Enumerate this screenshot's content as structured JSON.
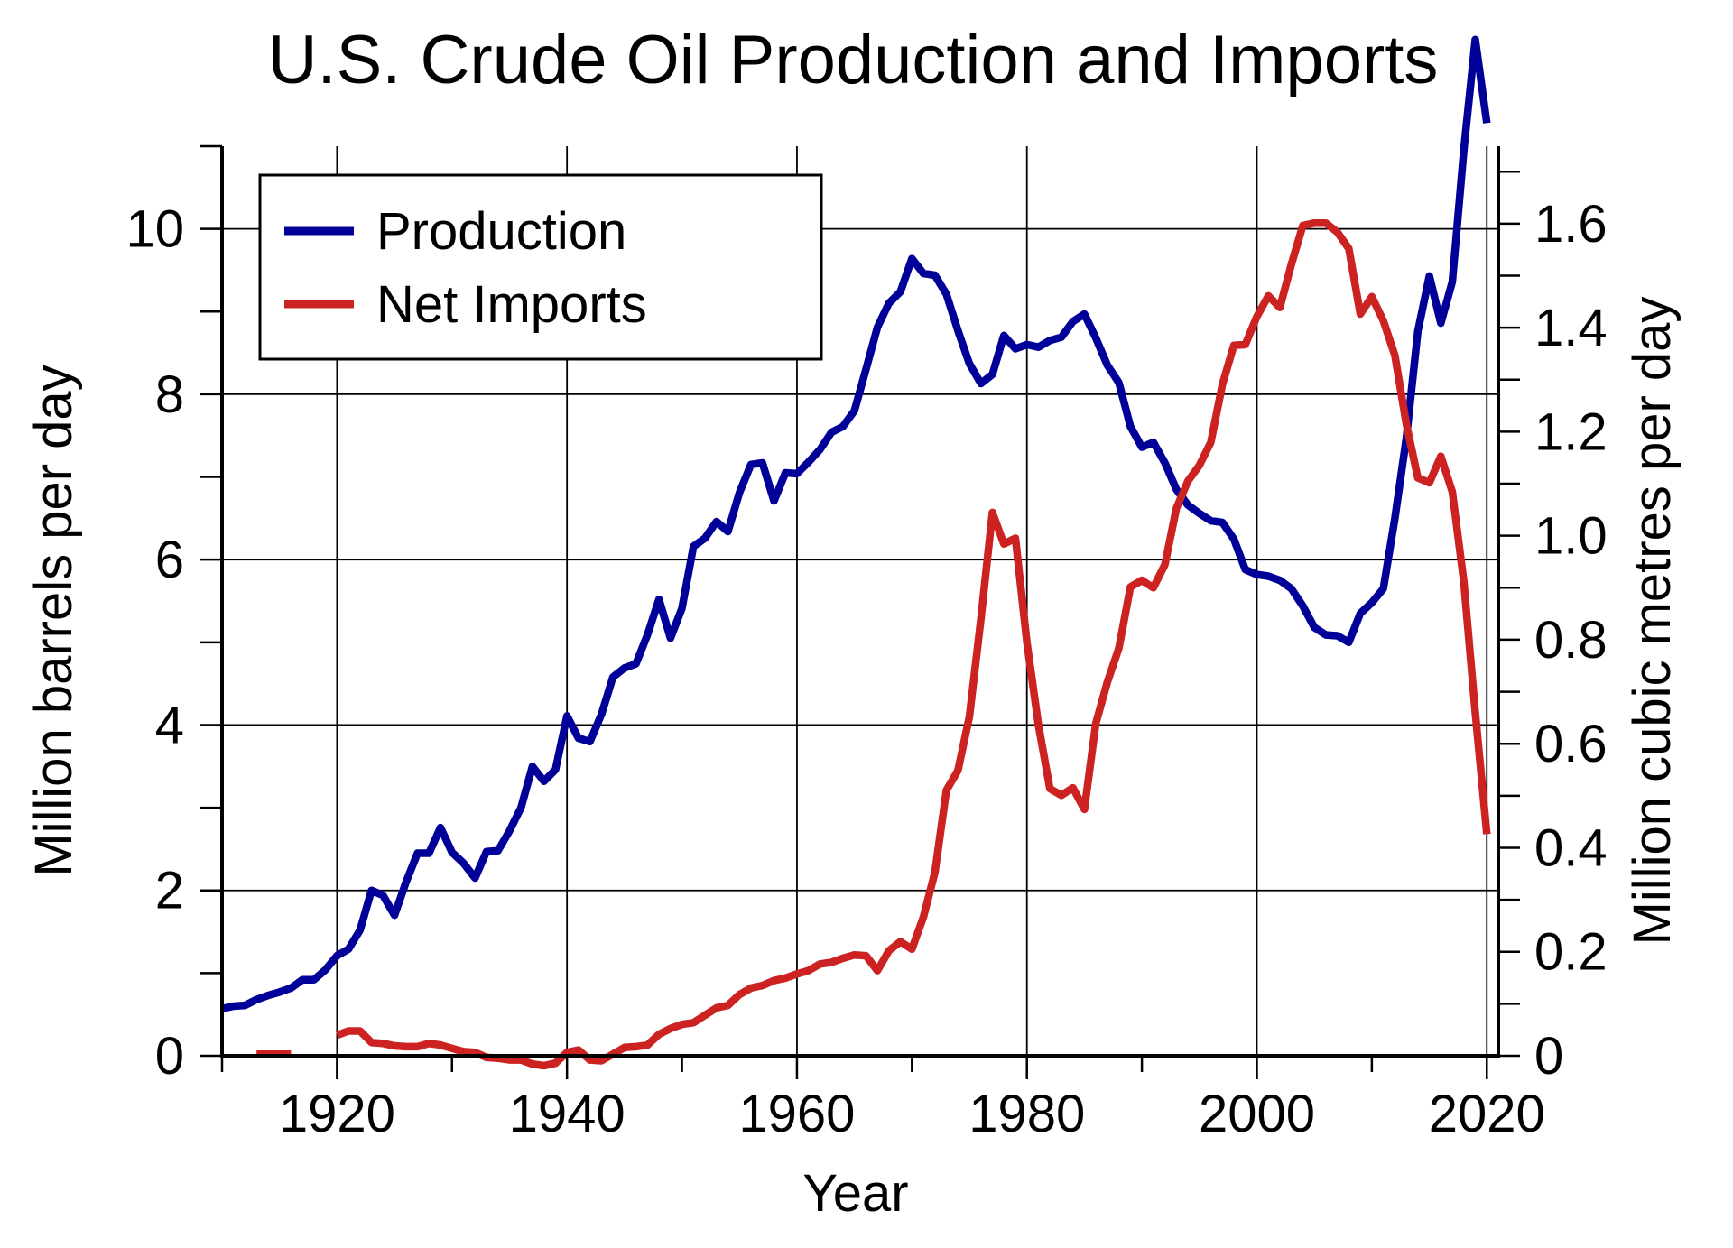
{
  "chart_data": {
    "type": "line",
    "title": "U.S. Crude Oil Production and Imports",
    "xlabel": "Year",
    "ylabel": "Million barrels per day",
    "ylabel_right": "Million cubic metres per day",
    "xlim": [
      1910,
      2021
    ],
    "ylim": [
      0,
      11
    ],
    "ylim_right": [
      0,
      1.749
    ],
    "x_ticks": [
      1920,
      1940,
      1960,
      1980,
      2000,
      2020
    ],
    "y_ticks": [
      0,
      2,
      4,
      6,
      8,
      10
    ],
    "y_ticks_right": [
      "0",
      "0.2",
      "0.4",
      "0.6",
      "0.8",
      "1.0",
      "1.2",
      "1.4",
      "1.6"
    ],
    "grid": true,
    "legend_position": "top-left",
    "series": [
      {
        "name": "Production",
        "color": "#000099",
        "x": [
          1910,
          1911,
          1912,
          1913,
          1914,
          1915,
          1916,
          1917,
          1918,
          1919,
          1920,
          1921,
          1922,
          1923,
          1924,
          1925,
          1926,
          1927,
          1928,
          1929,
          1930,
          1931,
          1932,
          1933,
          1934,
          1935,
          1936,
          1937,
          1938,
          1939,
          1940,
          1941,
          1942,
          1943,
          1944,
          1945,
          1946,
          1947,
          1948,
          1949,
          1950,
          1951,
          1952,
          1953,
          1954,
          1955,
          1956,
          1957,
          1958,
          1959,
          1960,
          1961,
          1962,
          1963,
          1964,
          1965,
          1966,
          1967,
          1968,
          1969,
          1970,
          1971,
          1972,
          1973,
          1974,
          1975,
          1976,
          1977,
          1978,
          1979,
          1980,
          1981,
          1982,
          1983,
          1984,
          1985,
          1986,
          1987,
          1988,
          1989,
          1990,
          1991,
          1992,
          1993,
          1994,
          1995,
          1996,
          1997,
          1998,
          1999,
          2000,
          2001,
          2002,
          2003,
          2004,
          2005,
          2006,
          2007,
          2008,
          2009,
          2010,
          2011,
          2012,
          2013,
          2014,
          2015,
          2016,
          2017,
          2018,
          2019,
          2020
        ],
        "values": [
          0.57,
          0.6,
          0.61,
          0.68,
          0.73,
          0.77,
          0.82,
          0.92,
          0.92,
          1.04,
          1.21,
          1.29,
          1.52,
          2.0,
          1.94,
          1.7,
          2.1,
          2.45,
          2.45,
          2.76,
          2.46,
          2.33,
          2.15,
          2.47,
          2.48,
          2.72,
          3.0,
          3.5,
          3.32,
          3.46,
          4.11,
          3.84,
          3.8,
          4.13,
          4.58,
          4.69,
          4.74,
          5.09,
          5.52,
          5.05,
          5.41,
          6.16,
          6.26,
          6.46,
          6.34,
          6.81,
          7.15,
          7.17,
          6.71,
          7.05,
          7.04,
          7.18,
          7.33,
          7.54,
          7.61,
          7.8,
          8.3,
          8.81,
          9.1,
          9.24,
          9.64,
          9.46,
          9.44,
          9.21,
          8.77,
          8.37,
          8.13,
          8.24,
          8.71,
          8.55,
          8.6,
          8.57,
          8.65,
          8.69,
          8.88,
          8.97,
          8.68,
          8.35,
          8.14,
          7.61,
          7.36,
          7.42,
          7.17,
          6.85,
          6.66,
          6.56,
          6.47,
          6.45,
          6.25,
          5.88,
          5.82,
          5.8,
          5.75,
          5.65,
          5.44,
          5.18,
          5.09,
          5.08,
          5.0,
          5.35,
          5.48,
          5.65,
          6.5,
          7.47,
          8.76,
          9.43,
          8.86,
          9.36,
          10.96,
          12.29,
          11.28
        ]
      },
      {
        "name": "Net Imports",
        "color": "#cc2222",
        "segments": [
          {
            "x": [
              1913,
              1914,
              1915,
              1916
            ],
            "values": [
              0.02,
              0.02,
              0.02,
              0.02
            ]
          },
          {
            "x": [
              1920,
              1921,
              1922,
              1923,
              1924,
              1925,
              1926,
              1927,
              1928,
              1929,
              1930,
              1931,
              1932,
              1933,
              1934,
              1935,
              1936,
              1937,
              1938,
              1939,
              1940,
              1941,
              1942,
              1943,
              1944,
              1945,
              1946,
              1947,
              1948,
              1949,
              1950,
              1951,
              1952,
              1953,
              1954,
              1955,
              1956,
              1957,
              1958,
              1959,
              1960,
              1961,
              1962,
              1963,
              1964,
              1965,
              1966,
              1967,
              1968,
              1969,
              1970,
              1971,
              1972,
              1973,
              1974,
              1975,
              1976,
              1977,
              1978,
              1979,
              1980,
              1981,
              1982,
              1983,
              1984,
              1985,
              1986,
              1987,
              1988,
              1989,
              1990,
              1991,
              1992,
              1993,
              1994,
              1995,
              1996,
              1997,
              1998,
              1999,
              2000,
              2001,
              2002,
              2003,
              2004,
              2005,
              2006,
              2007,
              2008,
              2009,
              2010,
              2011,
              2012,
              2013,
              2014,
              2015,
              2016,
              2017,
              2018,
              2019,
              2020
            ],
            "values": [
              0.25,
              0.3,
              0.3,
              0.16,
              0.15,
              0.12,
              0.11,
              0.11,
              0.15,
              0.13,
              0.09,
              0.05,
              0.04,
              -0.02,
              -0.03,
              -0.05,
              -0.05,
              -0.1,
              -0.12,
              -0.09,
              0.04,
              0.07,
              -0.05,
              -0.06,
              0.02,
              0.1,
              0.11,
              0.13,
              0.26,
              0.33,
              0.38,
              0.4,
              0.49,
              0.58,
              0.61,
              0.74,
              0.82,
              0.85,
              0.91,
              0.94,
              0.99,
              1.03,
              1.11,
              1.13,
              1.18,
              1.22,
              1.21,
              1.03,
              1.27,
              1.38,
              1.29,
              1.68,
              2.22,
              3.21,
              3.45,
              4.1,
              5.29,
              6.57,
              6.19,
              6.26,
              5.0,
              4.0,
              3.23,
              3.15,
              3.24,
              2.98,
              4.02,
              4.52,
              4.93,
              5.67,
              5.75,
              5.66,
              5.94,
              6.62,
              6.95,
              7.14,
              7.42,
              8.12,
              8.59,
              8.6,
              8.94,
              9.19,
              9.05,
              9.57,
              10.04,
              10.07,
              10.07,
              9.96,
              9.76,
              8.97,
              9.18,
              8.89,
              8.47,
              7.64,
              6.99,
              6.93,
              7.25,
              6.82,
              5.73,
              4.15,
              2.68
            ]
          }
        ]
      }
    ]
  }
}
